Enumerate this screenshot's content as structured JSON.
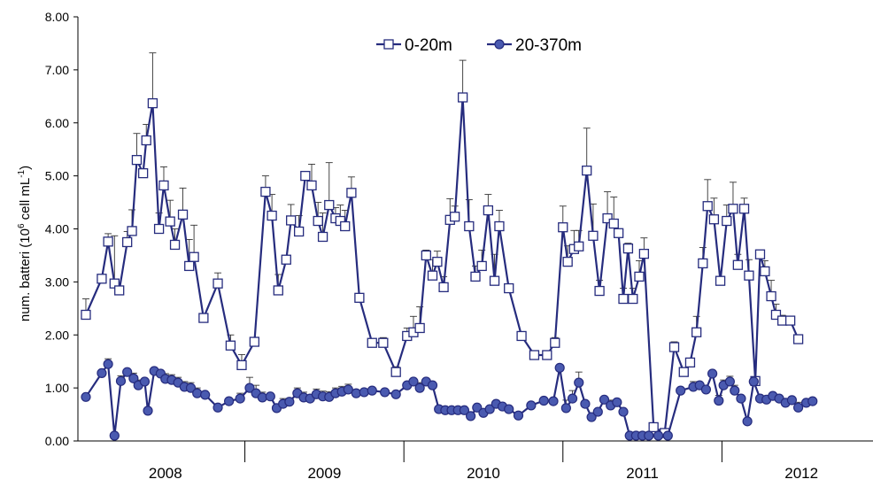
{
  "chart_data": {
    "type": "line",
    "title": "",
    "xlabel": "",
    "ylabel": "num. batteri  (10 6 cell mL-1)",
    "ylabel_parts": {
      "main": "num. batteri  (10",
      "sup1": "6",
      "mid": " cell mL",
      "sup2": "-1",
      "end": ")"
    },
    "ylim": [
      0,
      8
    ],
    "y_ticks": [
      "0.00",
      "1.00",
      "2.00",
      "3.00",
      "4.00",
      "5.00",
      "6.00",
      "7.00",
      "8.00"
    ],
    "xlim": [
      2007.45,
      2012.45
    ],
    "year_labels": [
      "2008",
      "2009",
      "2010",
      "2011",
      "2012"
    ],
    "year_label_positions": [
      2008.0,
      2009.0,
      2010.0,
      2011.0,
      2012.0
    ],
    "year_boundaries": [
      2008.5,
      2009.5,
      2010.5,
      2011.5
    ],
    "legend": {
      "placement": "top-center"
    },
    "series": [
      {
        "name": "0-20m",
        "marker": "square-open",
        "color": "#262c7e",
        "points": [
          [
            2007.5,
            2.38,
            0.3
          ],
          [
            2007.6,
            3.06,
            0.0
          ],
          [
            2007.64,
            3.76,
            0.15
          ],
          [
            2007.68,
            2.97,
            0.9
          ],
          [
            2007.71,
            2.84,
            0.0
          ],
          [
            2007.76,
            3.75,
            0.2
          ],
          [
            2007.79,
            3.96,
            0.4
          ],
          [
            2007.82,
            5.3,
            0.5
          ],
          [
            2007.86,
            5.05,
            0.0
          ],
          [
            2007.88,
            5.67,
            0.3
          ],
          [
            2007.92,
            6.37,
            0.95
          ],
          [
            2007.96,
            4.0,
            0.3
          ],
          [
            2007.99,
            4.82,
            0.35
          ],
          [
            2008.03,
            4.14,
            0.4
          ],
          [
            2008.06,
            3.7,
            0.3
          ],
          [
            2008.11,
            4.27,
            0.5
          ],
          [
            2008.15,
            3.3,
            0.5
          ],
          [
            2008.18,
            3.47,
            0.6
          ],
          [
            2008.24,
            2.32,
            0.0
          ],
          [
            2008.33,
            2.97,
            0.2
          ],
          [
            2008.41,
            1.8,
            0.2
          ],
          [
            2008.48,
            1.43,
            0.2
          ],
          [
            2008.56,
            1.87,
            0.0
          ],
          [
            2008.63,
            4.7,
            0.3
          ],
          [
            2008.67,
            4.25,
            0.4
          ],
          [
            2008.71,
            2.84,
            0.3
          ],
          [
            2008.76,
            3.42,
            0.0
          ],
          [
            2008.79,
            4.16,
            0.3
          ],
          [
            2008.84,
            3.95,
            0.3
          ],
          [
            2008.88,
            5.0,
            0.0
          ],
          [
            2008.92,
            4.82,
            0.4
          ],
          [
            2008.96,
            4.15,
            0.35
          ],
          [
            2008.99,
            3.85,
            0.45
          ],
          [
            2009.03,
            4.45,
            0.8
          ],
          [
            2009.07,
            4.2,
            0.2
          ],
          [
            2009.1,
            4.15,
            0.3
          ],
          [
            2009.13,
            4.05,
            0.3
          ],
          [
            2009.17,
            4.68,
            0.3
          ],
          [
            2009.22,
            2.7,
            0.0
          ],
          [
            2009.3,
            1.85,
            0.0
          ],
          [
            2009.37,
            1.85,
            0.1
          ],
          [
            2009.45,
            1.3,
            0.1
          ],
          [
            2009.52,
            1.98,
            0.15
          ],
          [
            2009.56,
            2.05,
            0.3
          ],
          [
            2009.6,
            2.13,
            0.4
          ],
          [
            2009.64,
            3.5,
            0.1
          ],
          [
            2009.68,
            3.12,
            0.3
          ],
          [
            2009.71,
            3.38,
            0.2
          ],
          [
            2009.75,
            2.9,
            0.2
          ],
          [
            2009.79,
            4.17,
            0.4
          ],
          [
            2009.82,
            4.23,
            0.2
          ],
          [
            2009.87,
            6.48,
            0.7
          ],
          [
            2009.91,
            4.05,
            0.5
          ],
          [
            2009.95,
            3.1,
            0.2
          ],
          [
            2009.99,
            3.3,
            0.3
          ],
          [
            2010.03,
            4.35,
            0.3
          ],
          [
            2010.07,
            3.02,
            0.5
          ],
          [
            2010.1,
            4.05,
            0.3
          ],
          [
            2010.16,
            2.88,
            0.0
          ],
          [
            2010.24,
            1.98,
            0.0
          ],
          [
            2010.32,
            1.62,
            0.0
          ],
          [
            2010.4,
            1.62,
            0.0
          ],
          [
            2010.45,
            1.85,
            0.1
          ],
          [
            2010.5,
            4.03,
            0.4
          ],
          [
            2010.53,
            3.38,
            0.3
          ],
          [
            2010.57,
            3.62,
            0.35
          ],
          [
            2010.6,
            3.67,
            0.3
          ],
          [
            2010.65,
            5.1,
            0.8
          ],
          [
            2010.69,
            3.87,
            0.6
          ],
          [
            2010.73,
            2.83,
            0.2
          ],
          [
            2010.78,
            4.2,
            0.5
          ],
          [
            2010.82,
            4.1,
            0.5
          ],
          [
            2010.85,
            3.92,
            0.0
          ],
          [
            2010.88,
            2.68,
            0.2
          ],
          [
            2010.91,
            3.63,
            0.1
          ],
          [
            2010.94,
            2.68,
            0.2
          ],
          [
            2010.98,
            3.1,
            0.3
          ],
          [
            2011.01,
            3.53,
            0.3
          ],
          [
            2011.07,
            0.26,
            0.0
          ],
          [
            2011.14,
            0.15,
            0.0
          ],
          [
            2011.2,
            1.77,
            0.1
          ],
          [
            2011.26,
            1.3,
            0.0
          ],
          [
            2011.3,
            1.48,
            0.0
          ],
          [
            2011.34,
            2.05,
            0.3
          ],
          [
            2011.38,
            3.35,
            0.3
          ],
          [
            2011.41,
            4.43,
            0.5
          ],
          [
            2011.45,
            4.18,
            0.4
          ],
          [
            2011.49,
            3.02,
            0.0
          ],
          [
            2011.53,
            4.15,
            0.3
          ],
          [
            2011.57,
            4.38,
            0.5
          ],
          [
            2011.6,
            3.32,
            0.2
          ],
          [
            2011.64,
            4.38,
            0.2
          ],
          [
            2011.67,
            3.12,
            0.3
          ],
          [
            2011.71,
            1.13,
            0.0
          ],
          [
            2011.74,
            3.52,
            0.0
          ],
          [
            2011.77,
            3.2,
            0.2
          ],
          [
            2011.81,
            2.73,
            0.3
          ],
          [
            2011.84,
            2.38,
            0.2
          ],
          [
            2011.88,
            2.27,
            0.1
          ],
          [
            2011.93,
            2.27,
            0.0
          ],
          [
            2011.98,
            1.92,
            0.0
          ]
        ]
      },
      {
        "name": "20-370m",
        "marker": "circle-filled",
        "color": "#262c7e",
        "points": [
          [
            2007.5,
            0.83,
            0.0
          ],
          [
            2007.6,
            1.28,
            0.0
          ],
          [
            2007.64,
            1.45,
            0.1
          ],
          [
            2007.68,
            0.1,
            0.0
          ],
          [
            2007.72,
            1.13,
            0.1
          ],
          [
            2007.76,
            1.3,
            0.0
          ],
          [
            2007.8,
            1.18,
            0.1
          ],
          [
            2007.83,
            1.05,
            0.1
          ],
          [
            2007.87,
            1.12,
            0.0
          ],
          [
            2007.89,
            0.57,
            0.0
          ],
          [
            2007.93,
            1.32,
            0.0
          ],
          [
            2007.97,
            1.27,
            0.0
          ],
          [
            2008.0,
            1.17,
            0.1
          ],
          [
            2008.04,
            1.15,
            0.1
          ],
          [
            2008.08,
            1.1,
            0.1
          ],
          [
            2008.12,
            1.02,
            0.1
          ],
          [
            2008.16,
            1.0,
            0.1
          ],
          [
            2008.2,
            0.9,
            0.1
          ],
          [
            2008.25,
            0.87,
            0.0
          ],
          [
            2008.33,
            0.63,
            0.0
          ],
          [
            2008.4,
            0.75,
            0.0
          ],
          [
            2008.47,
            0.8,
            0.1
          ],
          [
            2008.53,
            1.0,
            0.2
          ],
          [
            2008.57,
            0.9,
            0.15
          ],
          [
            2008.61,
            0.82,
            0.1
          ],
          [
            2008.66,
            0.84,
            0.0
          ],
          [
            2008.7,
            0.62,
            0.0
          ],
          [
            2008.74,
            0.7,
            0.1
          ],
          [
            2008.78,
            0.74,
            0.0
          ],
          [
            2008.83,
            0.9,
            0.1
          ],
          [
            2008.87,
            0.82,
            0.1
          ],
          [
            2008.91,
            0.8,
            0.0
          ],
          [
            2008.95,
            0.88,
            0.1
          ],
          [
            2008.99,
            0.84,
            0.1
          ],
          [
            2009.03,
            0.83,
            0.1
          ],
          [
            2009.07,
            0.9,
            0.1
          ],
          [
            2009.11,
            0.93,
            0.1
          ],
          [
            2009.15,
            0.97,
            0.1
          ],
          [
            2009.2,
            0.9,
            0.0
          ],
          [
            2009.25,
            0.92,
            0.0
          ],
          [
            2009.3,
            0.95,
            0.0
          ],
          [
            2009.38,
            0.92,
            0.0
          ],
          [
            2009.45,
            0.88,
            0.0
          ],
          [
            2009.52,
            1.05,
            0.0
          ],
          [
            2009.56,
            1.12,
            0.0
          ],
          [
            2009.6,
            1.0,
            0.1
          ],
          [
            2009.64,
            1.12,
            0.0
          ],
          [
            2009.68,
            1.05,
            0.0
          ],
          [
            2009.72,
            0.6,
            0.0
          ],
          [
            2009.76,
            0.58,
            0.0
          ],
          [
            2009.8,
            0.58,
            0.0
          ],
          [
            2009.84,
            0.58,
            0.0
          ],
          [
            2009.88,
            0.58,
            0.0
          ],
          [
            2009.92,
            0.47,
            0.0
          ],
          [
            2009.96,
            0.63,
            0.0
          ],
          [
            2010.0,
            0.53,
            0.0
          ],
          [
            2010.04,
            0.6,
            0.0
          ],
          [
            2010.08,
            0.7,
            0.0
          ],
          [
            2010.12,
            0.65,
            0.0
          ],
          [
            2010.16,
            0.6,
            0.0
          ],
          [
            2010.22,
            0.48,
            0.0
          ],
          [
            2010.3,
            0.67,
            0.0
          ],
          [
            2010.38,
            0.76,
            0.0
          ],
          [
            2010.44,
            0.75,
            0.0
          ],
          [
            2010.48,
            1.38,
            0.0
          ],
          [
            2010.52,
            0.62,
            0.15
          ],
          [
            2010.56,
            0.8,
            0.15
          ],
          [
            2010.6,
            1.1,
            0.2
          ],
          [
            2010.64,
            0.7,
            0.0
          ],
          [
            2010.68,
            0.45,
            0.0
          ],
          [
            2010.72,
            0.55,
            0.0
          ],
          [
            2010.76,
            0.78,
            0.0
          ],
          [
            2010.8,
            0.67,
            0.1
          ],
          [
            2010.84,
            0.73,
            0.0
          ],
          [
            2010.88,
            0.55,
            0.0
          ],
          [
            2010.92,
            0.1,
            0.0
          ],
          [
            2010.96,
            0.1,
            0.0
          ],
          [
            2011.0,
            0.1,
            0.0
          ],
          [
            2011.04,
            0.1,
            0.0
          ],
          [
            2011.1,
            0.1,
            0.0
          ],
          [
            2011.16,
            0.1,
            0.0
          ],
          [
            2011.24,
            0.95,
            0.0
          ],
          [
            2011.32,
            1.02,
            0.1
          ],
          [
            2011.36,
            1.05,
            0.0
          ],
          [
            2011.4,
            0.97,
            0.0
          ],
          [
            2011.44,
            1.27,
            0.0
          ],
          [
            2011.48,
            0.76,
            0.1
          ],
          [
            2011.51,
            1.05,
            0.1
          ],
          [
            2011.55,
            1.12,
            0.1
          ],
          [
            2011.58,
            0.95,
            0.1
          ],
          [
            2011.62,
            0.8,
            0.0
          ],
          [
            2011.66,
            0.37,
            0.0
          ],
          [
            2011.7,
            1.12,
            0.0
          ],
          [
            2011.74,
            0.8,
            0.0
          ],
          [
            2011.78,
            0.78,
            0.0
          ],
          [
            2011.82,
            0.85,
            0.0
          ],
          [
            2011.86,
            0.8,
            0.0
          ],
          [
            2011.9,
            0.72,
            0.0
          ],
          [
            2011.94,
            0.77,
            0.0
          ],
          [
            2011.98,
            0.63,
            0.1
          ],
          [
            2012.03,
            0.72,
            0.0
          ],
          [
            2012.07,
            0.75,
            0.0
          ]
        ]
      }
    ]
  }
}
